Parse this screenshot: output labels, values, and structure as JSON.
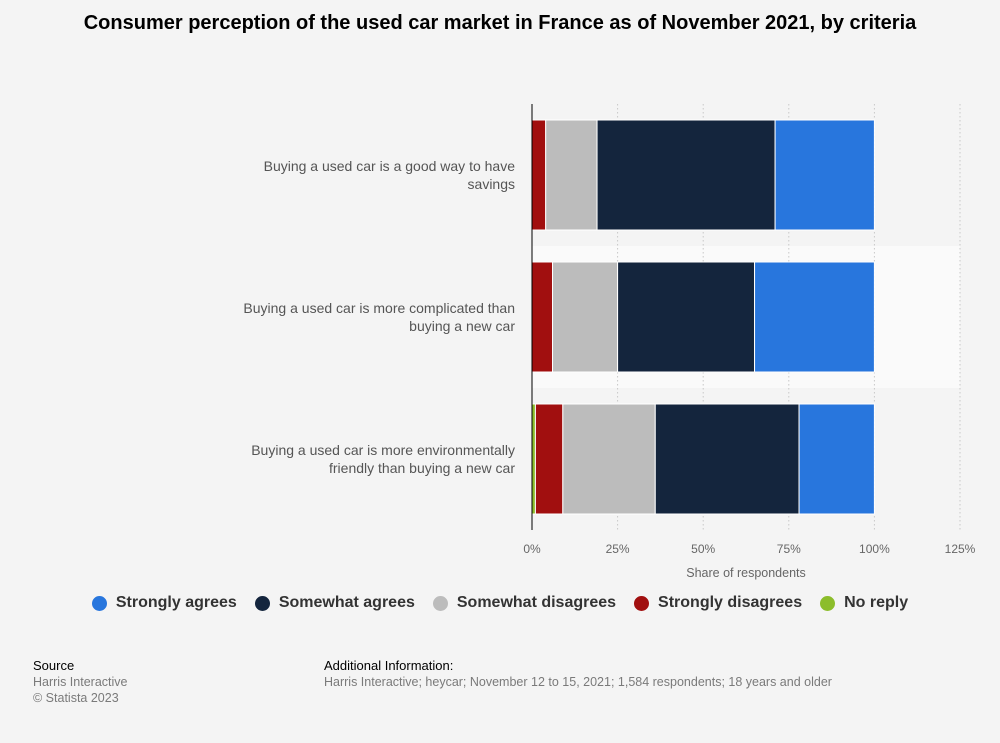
{
  "chart_data": {
    "type": "bar",
    "orientation": "horizontal",
    "stacked": true,
    "title": "Consumer perception of the used car market in France as of November 2021, by criteria",
    "categories": [
      "Buying a used car is a good way to have savings",
      "Buying a used car is more complicated than buying a new car",
      "Buying a used car is more environmentally friendly than buying a new car"
    ],
    "category_lines": [
      [
        "Buying a used car is a good way to have",
        "savings"
      ],
      [
        "Buying a used car is more complicated than",
        "buying a new car"
      ],
      [
        "Buying a used car is more environmentally",
        "friendly than buying a new car"
      ]
    ],
    "series": [
      {
        "name": "No reply",
        "color": "#8cbd2b",
        "values": [
          0,
          0,
          1
        ]
      },
      {
        "name": "Strongly disagrees",
        "color": "#a10f0f",
        "values": [
          4,
          6,
          8
        ]
      },
      {
        "name": "Somewhat disagrees",
        "color": "#bcbcbc",
        "values": [
          15,
          19,
          27
        ]
      },
      {
        "name": "Somewhat agrees",
        "color": "#14253d",
        "values": [
          52,
          40,
          42
        ]
      },
      {
        "name": "Strongly agrees",
        "color": "#2876dd",
        "values": [
          29,
          35,
          22
        ]
      }
    ],
    "xlabel": "Share of respondents",
    "xlim": [
      0,
      125
    ],
    "xticks": [
      "0%",
      "25%",
      "50%",
      "75%",
      "100%",
      "125%"
    ],
    "legend_order": [
      "Strongly agrees",
      "Somewhat agrees",
      "Somewhat disagrees",
      "Strongly disagrees",
      "No reply"
    ],
    "legend_position": "bottom"
  },
  "footer": {
    "source_title": "Source",
    "source_lines": [
      "Harris Interactive",
      "© Statista 2023"
    ],
    "info_title": "Additional Information:",
    "info_text": "Harris Interactive; heycar; November 12 to 15, 2021; 1,584 respondents; 18 years and older"
  }
}
